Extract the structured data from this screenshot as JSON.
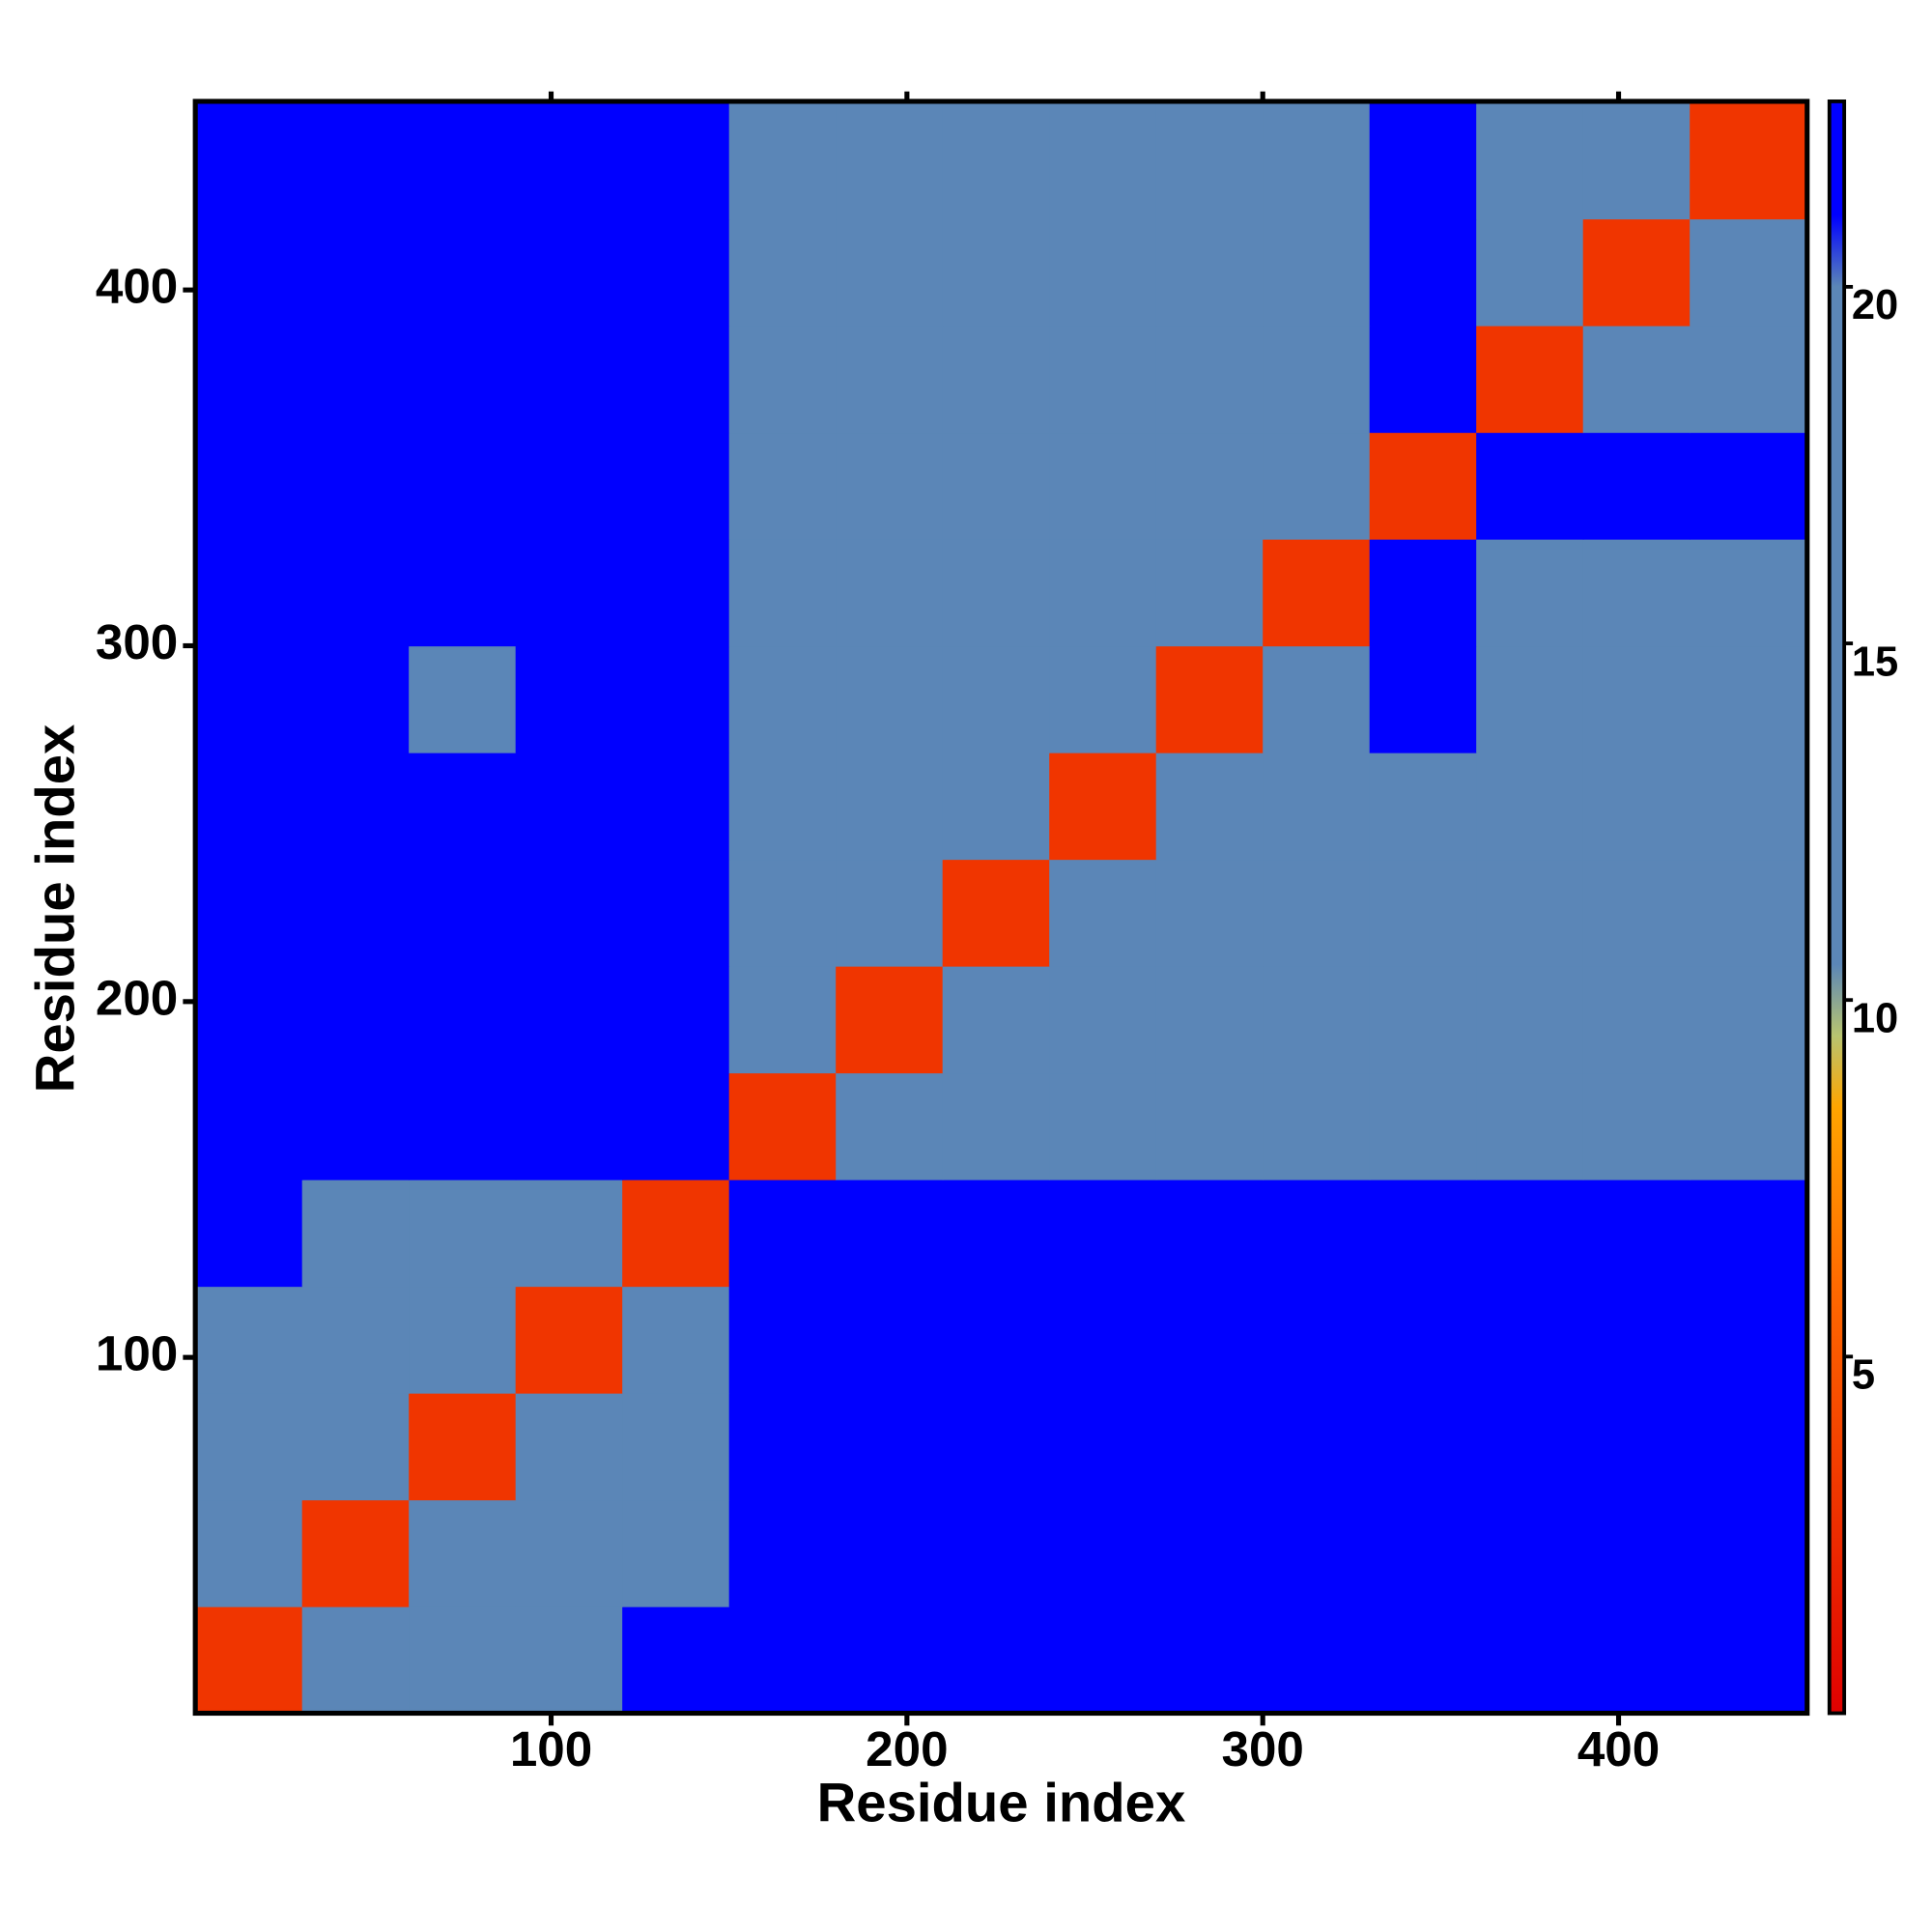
{
  "chart_data": {
    "type": "heatmap",
    "x_label": "Residue index",
    "y_label": "Residue index",
    "xlim": [
      0,
      453
    ],
    "ylim": [
      0,
      453
    ],
    "xticks": [
      100,
      200,
      300,
      400
    ],
    "yticks": [
      100,
      200,
      300,
      400
    ],
    "xbins": [
      0,
      30,
      60,
      90,
      120,
      150,
      180,
      210,
      240,
      270,
      300,
      330,
      360,
      390,
      420,
      453
    ],
    "ybins": [
      0,
      30,
      60,
      90,
      120,
      150,
      180,
      210,
      240,
      270,
      300,
      330,
      360,
      390,
      420,
      453
    ],
    "values": [
      [
        3,
        14,
        18,
        20,
        22,
        22,
        22,
        22,
        22,
        22,
        22,
        22,
        22,
        22,
        22
      ],
      [
        14,
        3,
        12,
        13,
        16,
        22,
        21,
        21,
        21,
        21,
        21,
        22,
        21,
        22,
        22
      ],
      [
        15,
        12,
        3,
        12,
        16,
        22,
        21,
        21,
        21,
        21,
        21,
        22,
        21,
        22,
        22
      ],
      [
        15,
        12,
        12,
        3,
        13,
        22,
        21,
        21,
        21,
        21,
        21,
        22,
        21,
        22,
        22
      ],
      [
        22,
        17,
        17,
        13,
        3,
        22,
        22,
        22,
        22,
        22,
        22,
        22,
        22,
        22,
        22
      ],
      [
        22,
        22,
        22,
        22,
        22,
        3,
        19,
        19,
        19,
        19,
        19,
        20,
        19,
        19,
        19
      ],
      [
        22,
        21,
        21,
        21,
        22,
        18,
        3,
        12,
        13,
        13,
        13,
        18,
        13,
        13,
        13
      ],
      [
        22,
        21,
        21,
        21,
        22,
        17,
        12,
        3,
        12,
        13,
        13,
        19,
        13,
        12,
        13
      ],
      [
        22,
        21,
        21,
        21,
        22,
        16,
        12,
        12,
        3,
        12,
        13,
        18,
        13,
        13,
        13
      ],
      [
        22,
        21,
        20,
        21,
        22,
        15,
        12,
        12,
        12,
        3,
        12,
        22,
        13,
        13,
        13
      ],
      [
        22,
        21,
        21,
        21,
        22,
        16,
        13,
        12,
        12,
        12,
        3,
        22,
        18,
        14,
        14
      ],
      [
        22,
        22,
        22,
        22,
        22,
        19,
        18,
        18,
        19,
        20,
        20,
        3,
        21,
        21,
        21
      ],
      [
        22,
        21,
        21,
        21,
        22,
        15,
        13,
        12,
        13,
        13,
        12,
        22,
        3,
        12,
        12
      ],
      [
        22,
        22,
        21,
        22,
        22,
        14,
        13,
        13,
        13,
        14,
        14,
        22,
        12,
        3,
        12
      ],
      [
        22,
        22,
        22,
        22,
        22,
        14,
        13,
        13,
        13,
        14,
        14,
        22,
        12,
        12,
        3
      ]
    ],
    "colorscale": [
      [
        0,
        "#e00000"
      ],
      [
        6,
        "#ff6a00"
      ],
      [
        8.5,
        "#ffa500"
      ],
      [
        9.5,
        "#b8c470"
      ],
      [
        10.5,
        "#5b86b7"
      ],
      [
        20,
        "#5b86b7"
      ],
      [
        21,
        "#0000ff"
      ]
    ],
    "colorbar": {
      "lim": [
        0,
        22.6
      ],
      "ticks": [
        5,
        10,
        15,
        20
      ]
    }
  }
}
